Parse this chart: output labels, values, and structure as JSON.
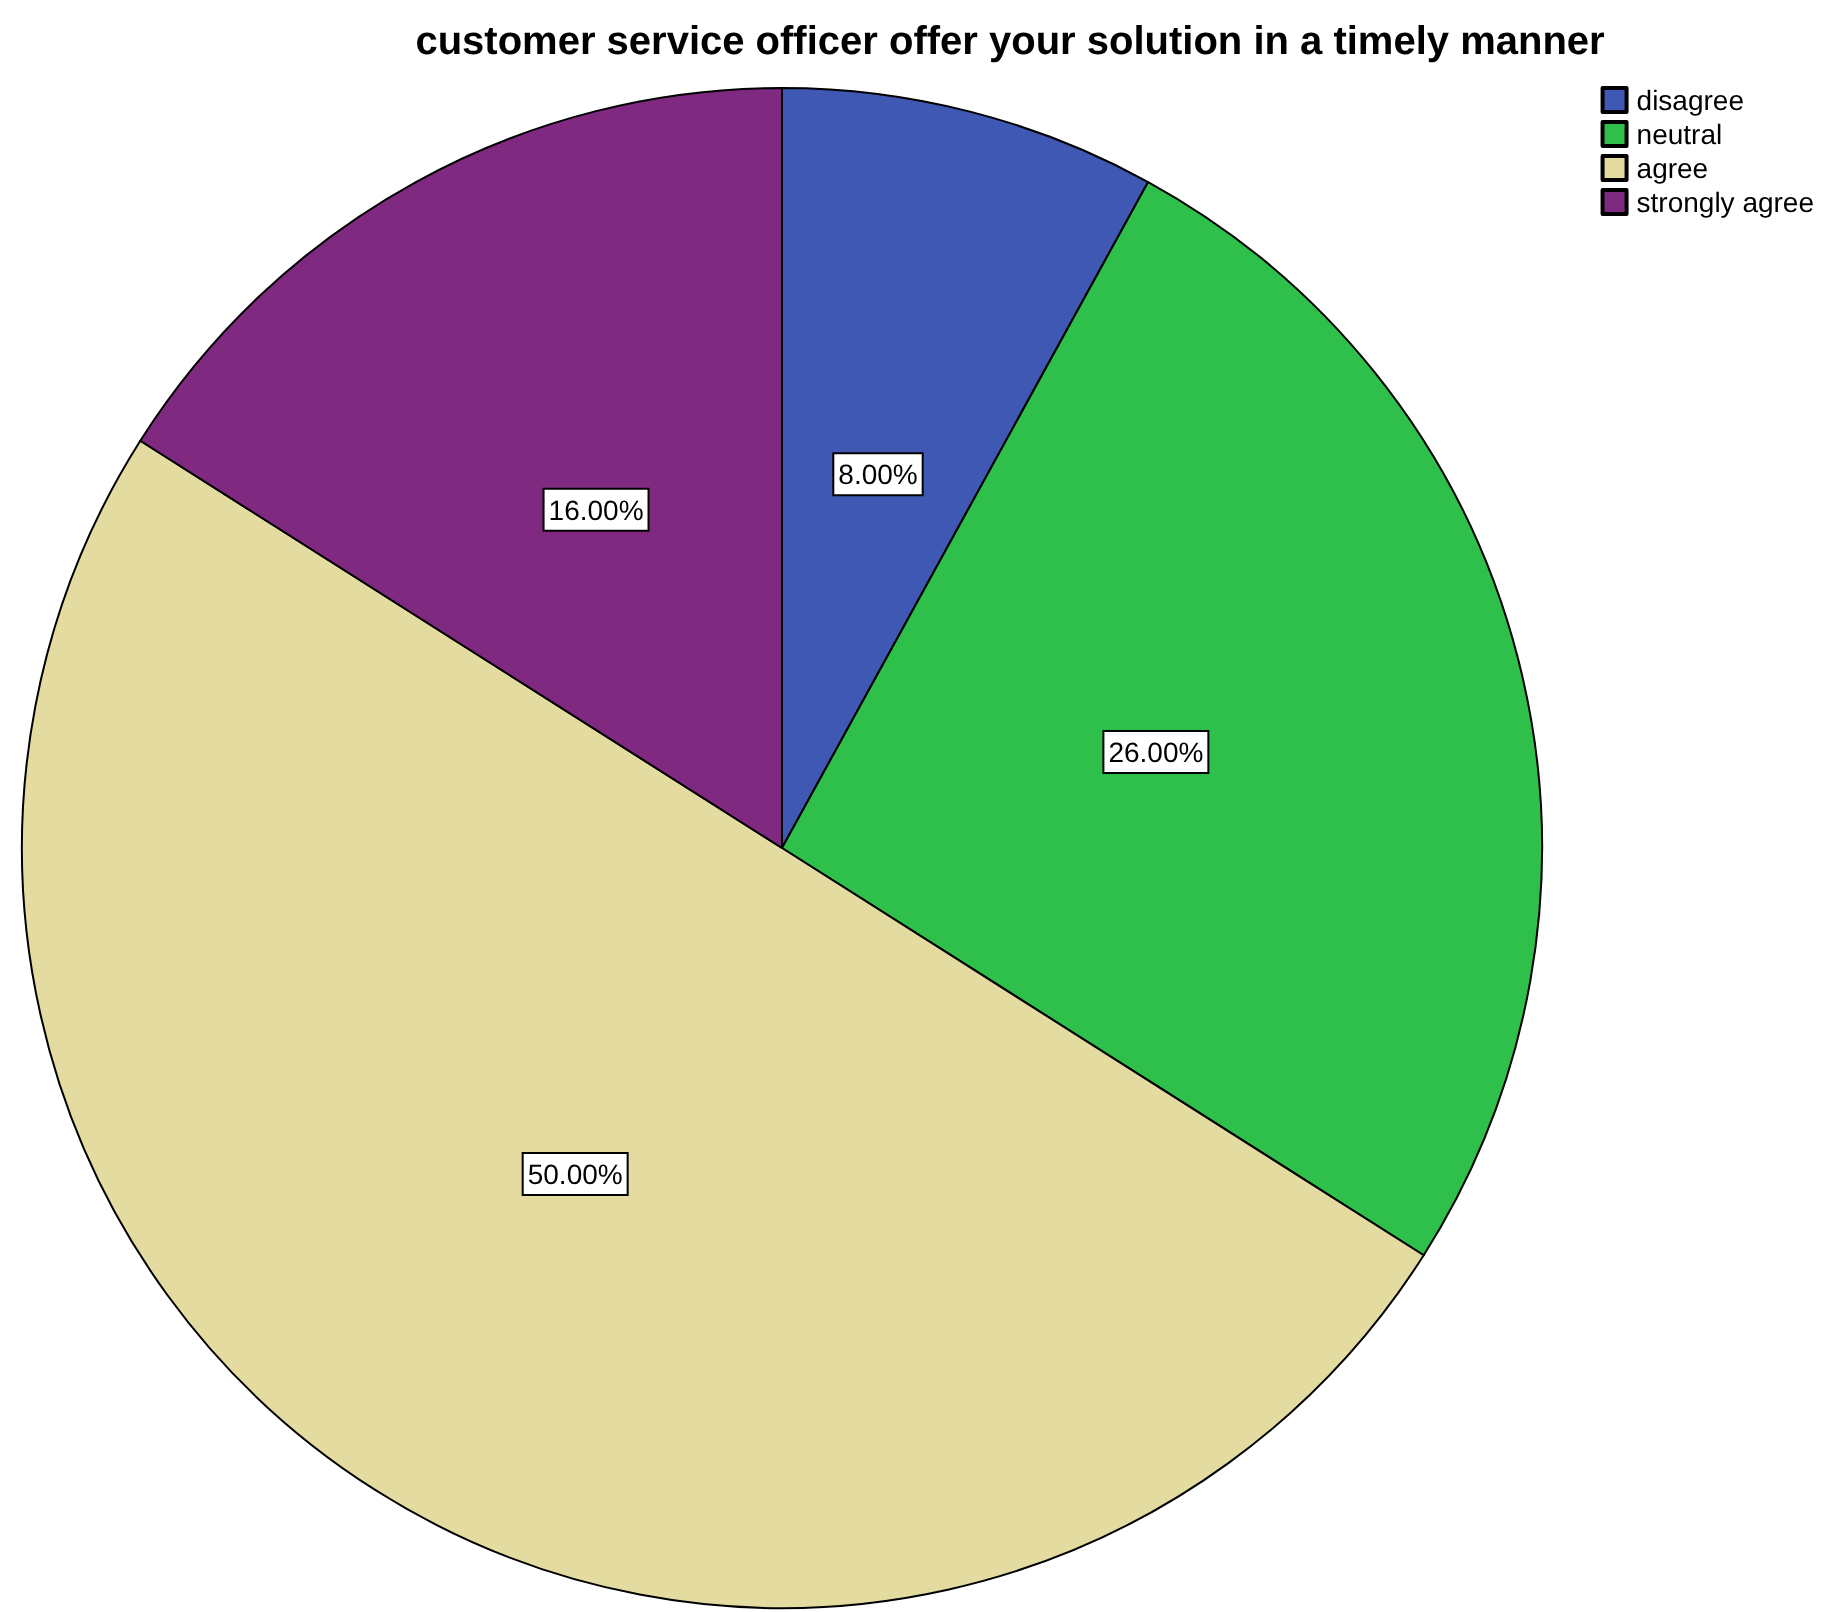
{
  "chart_data": {
    "type": "pie",
    "title": "customer service officer offer your solution in a timely manner",
    "categories": [
      "disagree",
      "neutral",
      "agree",
      "strongly agree"
    ],
    "values": [
      8,
      26,
      50,
      16
    ],
    "colors": [
      "#3e58b4",
      "#2ec04b",
      "#e3dba0",
      "#7f2a80"
    ],
    "value_labels": [
      "8.00%",
      "26.00%",
      "50.00%",
      "16.00%"
    ],
    "legend": "top right"
  }
}
